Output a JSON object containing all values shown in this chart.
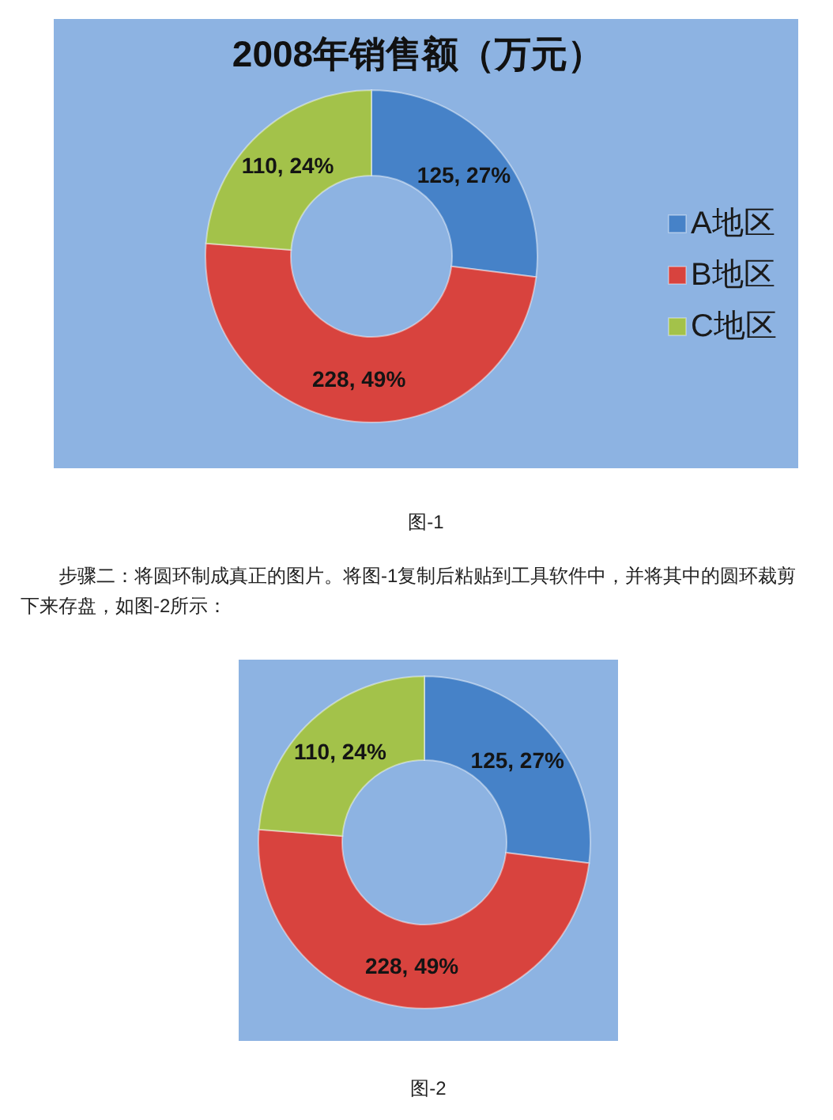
{
  "chart_data": [
    {
      "type": "donut",
      "title": "2008年销售额（万元）",
      "categories": [
        "A地区",
        "B地区",
        "C地区"
      ],
      "values": [
        125,
        228,
        110
      ],
      "colors": [
        "#4682c8",
        "#d8433e",
        "#a3c24a"
      ],
      "value_labels": [
        "125, 27%",
        "228, 49%",
        "110, 24%"
      ],
      "legend": "right",
      "annotations": [
        "图-1",
        "步骤二：将圆环制成真正的图片。将图-1复制后粘贴到工具软件中，并将其中的圆环裁剪下来存盘，如图-2所示："
      ]
    },
    {
      "type": "donut",
      "categories": [
        null,
        null,
        null
      ],
      "values": [
        125,
        228,
        110
      ],
      "colors": [
        "#4682c8",
        "#d8433e",
        "#a3c24a"
      ],
      "value_labels": [
        "125, 27%",
        "228, 49%",
        "110, 24%"
      ],
      "annotations": [
        "图-2"
      ]
    }
  ]
}
